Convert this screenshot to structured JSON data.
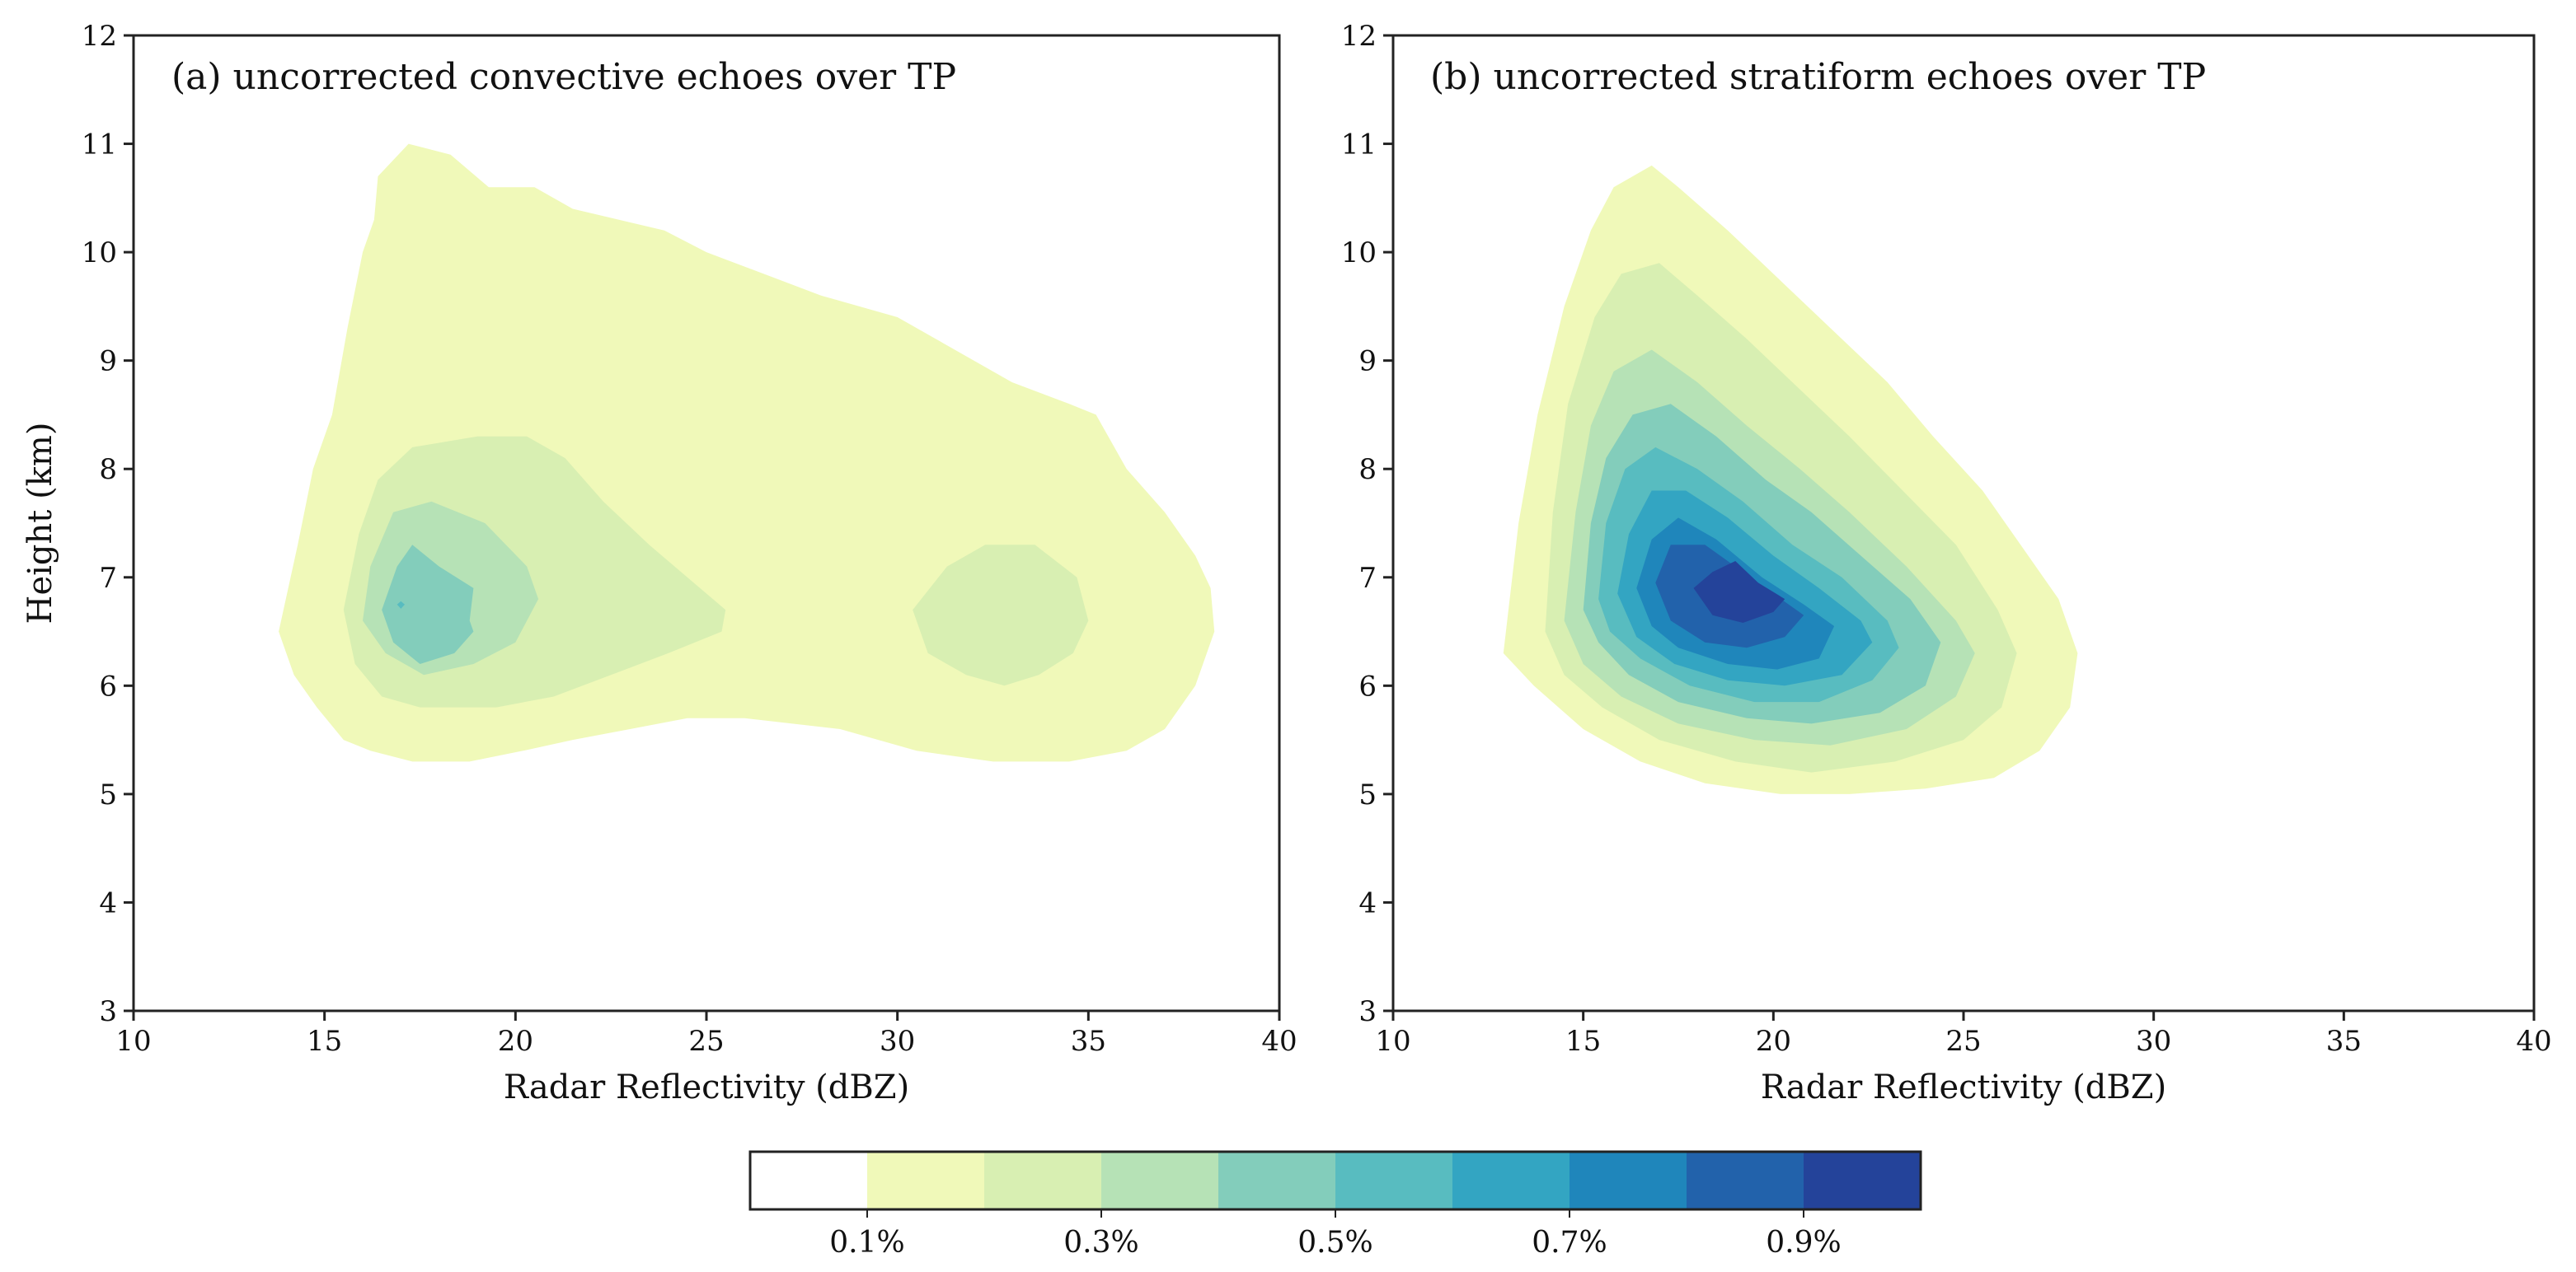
{
  "chart_data": [
    {
      "type": "contour",
      "title": "(a)  uncorrected convective echoes over TP",
      "xlabel": "Radar Reflectivity  (dBZ)",
      "ylabel": "Height   (km)",
      "xlim": [
        10,
        40
      ],
      "ylim": [
        3,
        12
      ],
      "xticks": [
        10,
        15,
        20,
        25,
        30,
        35,
        40
      ],
      "yticks": [
        3,
        4,
        5,
        6,
        7,
        8,
        9,
        10,
        11,
        12
      ],
      "contours": [
        {
          "level": 0,
          "points": [
            [
              13.8,
              6.5
            ],
            [
              14.3,
              7.3
            ],
            [
              14.7,
              8.0
            ],
            [
              15.2,
              8.5
            ],
            [
              15.6,
              9.3
            ],
            [
              16.0,
              10.0
            ],
            [
              16.3,
              10.3
            ],
            [
              16.4,
              10.7
            ],
            [
              17.2,
              11.0
            ],
            [
              18.3,
              10.9
            ],
            [
              19.3,
              10.6
            ],
            [
              20.5,
              10.6
            ],
            [
              21.5,
              10.4
            ],
            [
              22.7,
              10.3
            ],
            [
              23.9,
              10.2
            ],
            [
              25.0,
              10.0
            ],
            [
              26.5,
              9.8
            ],
            [
              28.0,
              9.6
            ],
            [
              30.0,
              9.4
            ],
            [
              31.5,
              9.1
            ],
            [
              33.0,
              8.8
            ],
            [
              34.5,
              8.6
            ],
            [
              35.2,
              8.5
            ],
            [
              36.0,
              8.0
            ],
            [
              37.0,
              7.6
            ],
            [
              37.8,
              7.2
            ],
            [
              38.2,
              6.9
            ],
            [
              38.3,
              6.5
            ],
            [
              37.8,
              6.0
            ],
            [
              37.0,
              5.6
            ],
            [
              36.0,
              5.4
            ],
            [
              34.5,
              5.3
            ],
            [
              32.5,
              5.3
            ],
            [
              30.5,
              5.4
            ],
            [
              28.5,
              5.6
            ],
            [
              26.0,
              5.7
            ],
            [
              24.5,
              5.7
            ],
            [
              23.0,
              5.6
            ],
            [
              21.5,
              5.5
            ],
            [
              20.2,
              5.4
            ],
            [
              18.8,
              5.3
            ],
            [
              17.3,
              5.3
            ],
            [
              16.2,
              5.4
            ],
            [
              15.5,
              5.5
            ],
            [
              14.8,
              5.8
            ],
            [
              14.2,
              6.1
            ]
          ]
        },
        {
          "level": 1,
          "points": [
            [
              15.5,
              6.7
            ],
            [
              15.9,
              7.4
            ],
            [
              16.4,
              7.9
            ],
            [
              17.3,
              8.2
            ],
            [
              19.0,
              8.3
            ],
            [
              20.3,
              8.3
            ],
            [
              21.3,
              8.1
            ],
            [
              22.3,
              7.7
            ],
            [
              23.5,
              7.3
            ],
            [
              24.5,
              7.0
            ],
            [
              25.5,
              6.7
            ],
            [
              25.4,
              6.5
            ],
            [
              24.0,
              6.3
            ],
            [
              22.5,
              6.1
            ],
            [
              21.0,
              5.9
            ],
            [
              19.5,
              5.8
            ],
            [
              17.5,
              5.8
            ],
            [
              16.5,
              5.9
            ],
            [
              15.8,
              6.2
            ]
          ]
        },
        {
          "level": 1,
          "points": [
            [
              30.4,
              6.7
            ],
            [
              31.3,
              7.1
            ],
            [
              32.3,
              7.3
            ],
            [
              33.6,
              7.3
            ],
            [
              34.7,
              7.0
            ],
            [
              35.0,
              6.6
            ],
            [
              34.6,
              6.3
            ],
            [
              33.7,
              6.1
            ],
            [
              32.8,
              6.0
            ],
            [
              31.8,
              6.1
            ],
            [
              30.8,
              6.3
            ]
          ]
        },
        {
          "level": 2,
          "points": [
            [
              16.0,
              6.6
            ],
            [
              16.2,
              7.1
            ],
            [
              16.8,
              7.6
            ],
            [
              17.8,
              7.7
            ],
            [
              19.2,
              7.5
            ],
            [
              20.3,
              7.1
            ],
            [
              20.6,
              6.8
            ],
            [
              20.0,
              6.4
            ],
            [
              18.9,
              6.2
            ],
            [
              17.6,
              6.1
            ],
            [
              16.6,
              6.3
            ]
          ]
        },
        {
          "level": 3,
          "points": [
            [
              16.5,
              6.7
            ],
            [
              16.9,
              7.1
            ],
            [
              17.3,
              7.3
            ],
            [
              18.0,
              7.1
            ],
            [
              18.9,
              6.9
            ],
            [
              18.8,
              6.6
            ],
            [
              18.9,
              6.5
            ],
            [
              18.4,
              6.3
            ],
            [
              17.5,
              6.2
            ],
            [
              16.8,
              6.4
            ]
          ]
        },
        {
          "level": 4,
          "points": [
            [
              16.9,
              6.75
            ],
            [
              17.0,
              6.78
            ],
            [
              17.1,
              6.75
            ],
            [
              17.0,
              6.71
            ]
          ]
        }
      ]
    },
    {
      "type": "contour",
      "title": "(b)  uncorrected stratiform echoes over TP",
      "xlabel": "Radar Reflectivity  (dBZ)",
      "ylabel": "",
      "xlim": [
        10,
        40
      ],
      "ylim": [
        3,
        12
      ],
      "xticks": [
        10,
        15,
        20,
        25,
        30,
        35,
        40
      ],
      "yticks": [
        3,
        4,
        5,
        6,
        7,
        8,
        9,
        10,
        11,
        12
      ],
      "contours": [
        {
          "level": 0,
          "points": [
            [
              12.9,
              6.3
            ],
            [
              13.3,
              7.5
            ],
            [
              13.8,
              8.5
            ],
            [
              14.5,
              9.5
            ],
            [
              15.2,
              10.2
            ],
            [
              15.8,
              10.6
            ],
            [
              16.8,
              10.8
            ],
            [
              17.5,
              10.6
            ],
            [
              18.8,
              10.2
            ],
            [
              20.0,
              9.8
            ],
            [
              21.5,
              9.3
            ],
            [
              23.0,
              8.8
            ],
            [
              24.2,
              8.3
            ],
            [
              25.5,
              7.8
            ],
            [
              26.5,
              7.3
            ],
            [
              27.5,
              6.8
            ],
            [
              28.0,
              6.3
            ],
            [
              27.8,
              5.8
            ],
            [
              27.0,
              5.4
            ],
            [
              25.8,
              5.15
            ],
            [
              24.0,
              5.05
            ],
            [
              22.0,
              5.0
            ],
            [
              20.2,
              5.0
            ],
            [
              18.2,
              5.1
            ],
            [
              16.5,
              5.3
            ],
            [
              15.0,
              5.6
            ],
            [
              13.7,
              6.0
            ]
          ]
        },
        {
          "level": 1,
          "points": [
            [
              14.0,
              6.5
            ],
            [
              14.2,
              7.6
            ],
            [
              14.6,
              8.6
            ],
            [
              15.3,
              9.4
            ],
            [
              16.0,
              9.8
            ],
            [
              17.0,
              9.9
            ],
            [
              18.0,
              9.6
            ],
            [
              19.3,
              9.2
            ],
            [
              20.5,
              8.8
            ],
            [
              22.0,
              8.3
            ],
            [
              23.4,
              7.8
            ],
            [
              24.8,
              7.3
            ],
            [
              25.9,
              6.7
            ],
            [
              26.4,
              6.3
            ],
            [
              26.0,
              5.8
            ],
            [
              25.0,
              5.5
            ],
            [
              23.2,
              5.3
            ],
            [
              21.0,
              5.2
            ],
            [
              19.0,
              5.3
            ],
            [
              17.0,
              5.5
            ],
            [
              15.5,
              5.8
            ],
            [
              14.5,
              6.1
            ]
          ]
        },
        {
          "level": 2,
          "points": [
            [
              14.5,
              6.6
            ],
            [
              14.8,
              7.6
            ],
            [
              15.2,
              8.4
            ],
            [
              15.8,
              8.9
            ],
            [
              16.8,
              9.1
            ],
            [
              18.0,
              8.8
            ],
            [
              19.3,
              8.4
            ],
            [
              20.7,
              8.0
            ],
            [
              22.0,
              7.6
            ],
            [
              23.5,
              7.1
            ],
            [
              24.8,
              6.6
            ],
            [
              25.3,
              6.3
            ],
            [
              24.8,
              5.9
            ],
            [
              23.5,
              5.6
            ],
            [
              21.5,
              5.45
            ],
            [
              19.5,
              5.5
            ],
            [
              17.5,
              5.65
            ],
            [
              16.0,
              5.9
            ],
            [
              15.0,
              6.2
            ]
          ]
        },
        {
          "level": 3,
          "points": [
            [
              15.0,
              6.7
            ],
            [
              15.2,
              7.5
            ],
            [
              15.6,
              8.1
            ],
            [
              16.3,
              8.5
            ],
            [
              17.3,
              8.6
            ],
            [
              18.5,
              8.3
            ],
            [
              19.8,
              7.9
            ],
            [
              21.0,
              7.6
            ],
            [
              22.3,
              7.2
            ],
            [
              23.6,
              6.8
            ],
            [
              24.4,
              6.4
            ],
            [
              24.0,
              6.0
            ],
            [
              22.8,
              5.75
            ],
            [
              21.0,
              5.65
            ],
            [
              19.3,
              5.7
            ],
            [
              17.5,
              5.85
            ],
            [
              16.2,
              6.1
            ],
            [
              15.4,
              6.4
            ]
          ]
        },
        {
          "level": 4,
          "points": [
            [
              15.4,
              6.8
            ],
            [
              15.6,
              7.5
            ],
            [
              16.1,
              8.0
            ],
            [
              16.9,
              8.2
            ],
            [
              18.0,
              8.0
            ],
            [
              19.2,
              7.7
            ],
            [
              20.5,
              7.3
            ],
            [
              21.8,
              7.0
            ],
            [
              23.0,
              6.6
            ],
            [
              23.3,
              6.35
            ],
            [
              22.6,
              6.05
            ],
            [
              21.2,
              5.85
            ],
            [
              19.5,
              5.85
            ],
            [
              17.8,
              6.0
            ],
            [
              16.5,
              6.25
            ],
            [
              15.7,
              6.5
            ]
          ]
        },
        {
          "level": 5,
          "points": [
            [
              15.9,
              6.85
            ],
            [
              16.2,
              7.4
            ],
            [
              16.8,
              7.8
            ],
            [
              17.7,
              7.8
            ],
            [
              18.8,
              7.55
            ],
            [
              20.0,
              7.2
            ],
            [
              21.2,
              6.9
            ],
            [
              22.3,
              6.6
            ],
            [
              22.6,
              6.4
            ],
            [
              21.8,
              6.1
            ],
            [
              20.3,
              6.0
            ],
            [
              18.8,
              6.05
            ],
            [
              17.4,
              6.2
            ],
            [
              16.4,
              6.45
            ]
          ]
        },
        {
          "level": 6,
          "points": [
            [
              16.4,
              6.9
            ],
            [
              16.8,
              7.35
            ],
            [
              17.5,
              7.55
            ],
            [
              18.5,
              7.35
            ],
            [
              19.7,
              7.0
            ],
            [
              20.8,
              6.75
            ],
            [
              21.6,
              6.55
            ],
            [
              21.2,
              6.25
            ],
            [
              20.1,
              6.15
            ],
            [
              18.8,
              6.2
            ],
            [
              17.5,
              6.35
            ],
            [
              16.8,
              6.55
            ]
          ]
        },
        {
          "level": 7,
          "points": [
            [
              16.9,
              6.95
            ],
            [
              17.3,
              7.3
            ],
            [
              18.2,
              7.3
            ],
            [
              19.2,
              7.05
            ],
            [
              20.2,
              6.8
            ],
            [
              20.8,
              6.65
            ],
            [
              20.3,
              6.45
            ],
            [
              19.3,
              6.35
            ],
            [
              18.2,
              6.4
            ],
            [
              17.3,
              6.6
            ]
          ]
        },
        {
          "level": 8,
          "points": [
            [
              17.9,
              6.9
            ],
            [
              18.4,
              7.05
            ],
            [
              19.0,
              7.15
            ],
            [
              19.6,
              6.95
            ],
            [
              20.3,
              6.8
            ],
            [
              20.0,
              6.68
            ],
            [
              19.2,
              6.58
            ],
            [
              18.4,
              6.65
            ]
          ]
        }
      ]
    }
  ],
  "colorbar": {
    "colors": [
      "#ffffff",
      "#f0f9b9",
      "#d8efb2",
      "#b6e2b6",
      "#83cdbb",
      "#58bcc0",
      "#33a5c2",
      "#1f86bb",
      "#2262ab",
      "#24439a"
    ],
    "labels": [
      "0.1%",
      "0.3%",
      "0.5%",
      "0.7%",
      "0.9%"
    ]
  }
}
